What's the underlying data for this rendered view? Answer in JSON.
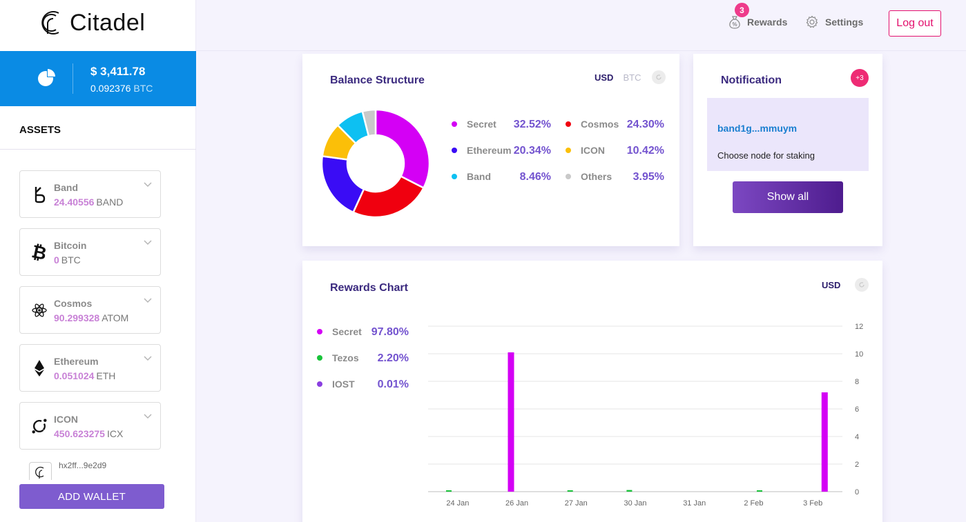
{
  "app": {
    "name": "Citadel"
  },
  "balance": {
    "usd": "$ 3,411.78",
    "btc_value": "0.092376",
    "btc_unit": "BTC"
  },
  "sidebar": {
    "assets_title": "ASSETS",
    "assets": [
      {
        "name": "Band",
        "amount": "24.40556",
        "unit": "BAND",
        "icon": "band-icon"
      },
      {
        "name": "Bitcoin",
        "amount": "0",
        "unit": "BTC",
        "icon": "bitcoin-icon"
      },
      {
        "name": "Cosmos",
        "amount": "90.299328",
        "unit": "ATOM",
        "icon": "cosmos-icon"
      },
      {
        "name": "Ethereum",
        "amount": "0.051024",
        "unit": "ETH",
        "icon": "ethereum-icon"
      },
      {
        "name": "ICON",
        "amount": "450.623275",
        "unit": "ICX",
        "icon": "icon-icon"
      }
    ],
    "wallet_address": "hx2ff...9e2d9",
    "add_wallet_label": "ADD WALLET"
  },
  "topbar": {
    "rewards_label": "Rewards",
    "rewards_badge": "3",
    "settings_label": "Settings",
    "logout_label": "Log out"
  },
  "balance_structure": {
    "title": "Balance Structure",
    "currency_active": "USD",
    "currency_inactive": "BTC",
    "chart_data": {
      "type": "pie",
      "title": "Balance Structure",
      "series": [
        {
          "name": "Secret",
          "value": 32.52,
          "label": "32.52%",
          "color": "#d400f5"
        },
        {
          "name": "Cosmos",
          "value": 24.3,
          "label": "24.30%",
          "color": "#f0000f"
        },
        {
          "name": "Ethereum",
          "value": 20.34,
          "label": "20.34%",
          "color": "#3a0cf5"
        },
        {
          "name": "ICON",
          "value": 10.42,
          "label": "10.42%",
          "color": "#fbbf08"
        },
        {
          "name": "Band",
          "value": 8.46,
          "label": "8.46%",
          "color": "#0dc0f2"
        },
        {
          "name": "Others",
          "value": 3.95,
          "label": "3.95%",
          "color": "#c9c9c9"
        }
      ]
    }
  },
  "notification": {
    "title": "Notification",
    "badge": "+3",
    "address": "band1g...mmuym",
    "message": "Choose node for staking",
    "show_all_label": "Show all"
  },
  "rewards_chart": {
    "title": "Rewards Chart",
    "currency": "USD",
    "legend": [
      {
        "name": "Secret",
        "pct": "97.80%",
        "color": "#d400f5"
      },
      {
        "name": "Tezos",
        "pct": "2.20%",
        "color": "#19c33a"
      },
      {
        "name": "IOST",
        "pct": "0.01%",
        "color": "#8a3fe0"
      }
    ],
    "chart_data": {
      "type": "bar",
      "title": "Rewards Chart",
      "categories": [
        "24 Jan",
        "26 Jan",
        "27 Jan",
        "30 Jan",
        "31 Jan",
        "2 Feb",
        "3 Feb"
      ],
      "ylim": [
        0,
        12
      ],
      "yticks": [
        "0",
        "2",
        "4",
        "6",
        "8",
        "10",
        "12"
      ],
      "bars": [
        {
          "series": "Tezos",
          "day": -0.3,
          "value": 0.1,
          "color": "#19c33a"
        },
        {
          "series": "Secret",
          "day": 1.8,
          "value": 10.1,
          "color": "#d400f5"
        },
        {
          "series": "Tezos",
          "day": 3.8,
          "value": 0.05,
          "color": "#19c33a"
        },
        {
          "series": "Tezos",
          "day": 5.8,
          "value": 0.12,
          "color": "#19c33a"
        },
        {
          "series": "Tezos",
          "day": 10.2,
          "value": 0.02,
          "color": "#19c33a"
        },
        {
          "series": "Secret",
          "day": 12.4,
          "value": 7.2,
          "color": "#d400f5"
        }
      ],
      "category_days": [
        0,
        2,
        4,
        6,
        8,
        10,
        12
      ]
    }
  }
}
